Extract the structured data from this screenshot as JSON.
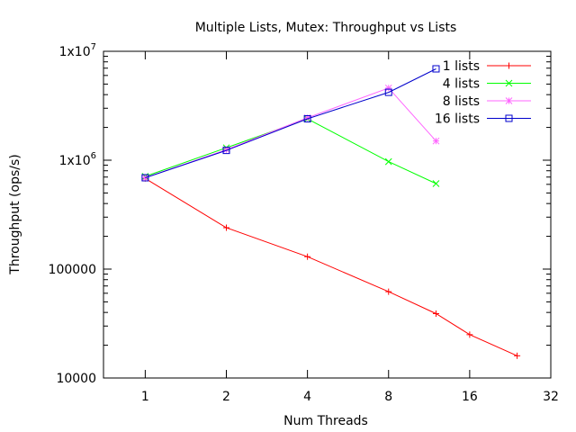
{
  "chart_data": {
    "type": "line",
    "title": "Multiple Lists, Mutex: Throughput vs Lists",
    "xlabel": "Num Threads",
    "ylabel": "Throughput (ops/s)",
    "x_scale": "log2",
    "y_scale": "log10",
    "xlim": [
      0.7,
      32
    ],
    "ylim": [
      10000,
      10000000
    ],
    "x_ticks": [
      {
        "value": 1,
        "label": "1"
      },
      {
        "value": 2,
        "label": "2"
      },
      {
        "value": 4,
        "label": "4"
      },
      {
        "value": 8,
        "label": "8"
      },
      {
        "value": 16,
        "label": "16"
      },
      {
        "value": 32,
        "label": "32"
      }
    ],
    "y_ticks": [
      {
        "value": 10000,
        "label": "10000"
      },
      {
        "value": 100000,
        "label": "100000"
      },
      {
        "value": 1000000,
        "label": "1x10",
        "exp": "6"
      },
      {
        "value": 10000000,
        "label": "1x10",
        "exp": "7"
      }
    ],
    "grid": false,
    "legend_position": "top-right",
    "series": [
      {
        "name": "1 lists",
        "color": "#ff0000",
        "marker": "plus",
        "x": [
          1,
          2,
          4,
          8,
          12,
          16,
          24
        ],
        "y": [
          680000,
          240000,
          130000,
          62000,
          39000,
          25000,
          16000
        ]
      },
      {
        "name": "4 lists",
        "color": "#00ff00",
        "marker": "cross",
        "x": [
          1,
          2,
          4,
          8,
          12
        ],
        "y": [
          710000,
          1300000,
          2400000,
          970000,
          610000
        ]
      },
      {
        "name": "8 lists",
        "color": "#ff66ff",
        "marker": "star",
        "x": [
          1,
          2,
          4,
          8,
          12
        ],
        "y": [
          690000,
          1250000,
          2450000,
          4600000,
          1500000
        ]
      },
      {
        "name": "16 lists",
        "color": "#0000cc",
        "marker": "square",
        "x": [
          1,
          2,
          4,
          8,
          12
        ],
        "y": [
          690000,
          1230000,
          2400000,
          4200000,
          6900000
        ]
      }
    ]
  }
}
